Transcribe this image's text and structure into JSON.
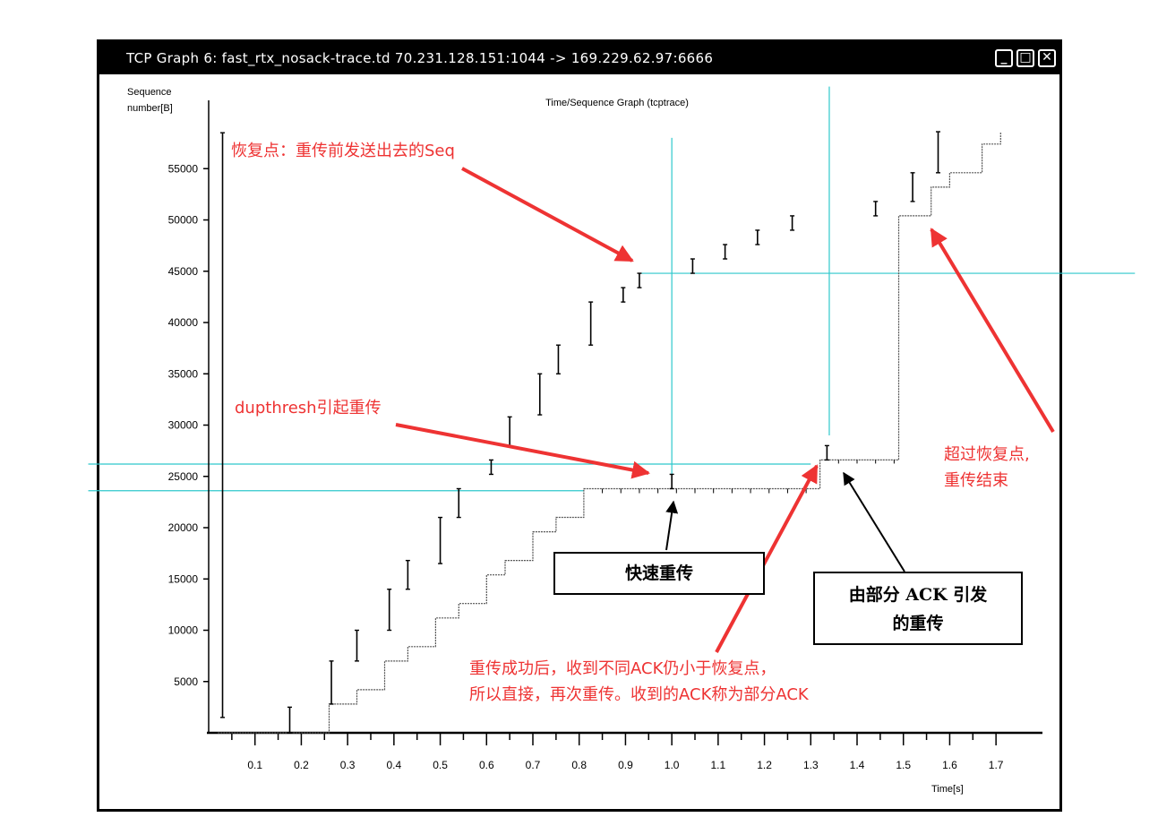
{
  "window": {
    "title": "TCP Graph 6: fast_rtx_nosack-trace.td 70.231.128.151:1044 -> 169.229.62.97:6666",
    "buttons": {
      "minimize": "_",
      "maximize": "□",
      "close": "✕"
    }
  },
  "chart_data": {
    "type": "scatter",
    "title": "Time/Sequence Graph (tcptrace)",
    "ylabel_line1": "Sequence",
    "ylabel_line2": "number[B]",
    "xlabel": "Time[s]",
    "xlim": [
      0,
      1.75
    ],
    "ylim": [
      0,
      60000
    ],
    "x_ticks": [
      0.1,
      0.2,
      0.3,
      0.4,
      0.5,
      0.6,
      0.7,
      0.8,
      0.9,
      1.0,
      1.1,
      1.2,
      1.3,
      1.4,
      1.5,
      1.6,
      1.7
    ],
    "x_tick_labels": [
      "0.1",
      "0.2",
      "0.3",
      "0.4",
      "0.5",
      "0.6",
      "0.7",
      "0.8",
      "0.9",
      "1.0",
      "1.1",
      "1.2",
      "1.3",
      "1.4",
      "1.5",
      "1.6",
      "1.7"
    ],
    "y_ticks": [
      5000,
      10000,
      15000,
      20000,
      25000,
      30000,
      35000,
      40000,
      45000,
      50000,
      55000
    ],
    "y_tick_labels": [
      "5000",
      "10000",
      "15000",
      "20000",
      "25000",
      "30000",
      "35000",
      "40000",
      "45000",
      "50000",
      "55000"
    ],
    "colors": {
      "data": "#000000",
      "guide": "#2ec8cc",
      "annotation": "#ee3333",
      "ack": "#555555"
    },
    "segments": [
      {
        "t": 0.03,
        "lo": 1500,
        "hi": 58500
      },
      {
        "t": 0.175,
        "lo": 0,
        "hi": 2500
      },
      {
        "t": 0.265,
        "lo": 2800,
        "hi": 7000
      },
      {
        "t": 0.32,
        "lo": 7000,
        "hi": 10000
      },
      {
        "t": 0.39,
        "lo": 10000,
        "hi": 14000
      },
      {
        "t": 0.43,
        "lo": 14000,
        "hi": 16800
      },
      {
        "t": 0.5,
        "lo": 16500,
        "hi": 21000
      },
      {
        "t": 0.54,
        "lo": 21000,
        "hi": 23800
      },
      {
        "t": 0.61,
        "lo": 25200,
        "hi": 26600
      },
      {
        "t": 0.65,
        "lo": 28000,
        "hi": 30800
      },
      {
        "t": 0.715,
        "lo": 31000,
        "hi": 35000
      },
      {
        "t": 0.755,
        "lo": 35000,
        "hi": 37800
      },
      {
        "t": 0.825,
        "lo": 37800,
        "hi": 42000
      },
      {
        "t": 0.895,
        "lo": 42000,
        "hi": 43400
      },
      {
        "t": 0.93,
        "lo": 43400,
        "hi": 44800
      },
      {
        "t": 1.0,
        "lo": 23800,
        "hi": 25200
      },
      {
        "t": 1.045,
        "lo": 44800,
        "hi": 46200
      },
      {
        "t": 1.115,
        "lo": 46200,
        "hi": 47600
      },
      {
        "t": 1.185,
        "lo": 47600,
        "hi": 49000
      },
      {
        "t": 1.26,
        "lo": 49000,
        "hi": 50400
      },
      {
        "t": 1.335,
        "lo": 26600,
        "hi": 28000
      },
      {
        "t": 1.44,
        "lo": 50400,
        "hi": 51800
      },
      {
        "t": 1.52,
        "lo": 51800,
        "hi": 54600
      },
      {
        "t": 1.575,
        "lo": 54600,
        "hi": 58600
      }
    ],
    "ack_line": [
      [
        0.02,
        0
      ],
      [
        0.26,
        0
      ],
      [
        0.26,
        2800
      ],
      [
        0.32,
        2800
      ],
      [
        0.32,
        4200
      ],
      [
        0.38,
        4200
      ],
      [
        0.38,
        7000
      ],
      [
        0.43,
        7000
      ],
      [
        0.43,
        8400
      ],
      [
        0.49,
        8400
      ],
      [
        0.49,
        11200
      ],
      [
        0.54,
        11200
      ],
      [
        0.54,
        12600
      ],
      [
        0.6,
        12600
      ],
      [
        0.6,
        15400
      ],
      [
        0.64,
        15400
      ],
      [
        0.64,
        16800
      ],
      [
        0.7,
        16800
      ],
      [
        0.7,
        19600
      ],
      [
        0.75,
        19600
      ],
      [
        0.75,
        21000
      ],
      [
        0.81,
        21000
      ],
      [
        0.81,
        23800
      ],
      [
        1.32,
        23800
      ],
      [
        1.32,
        26600
      ],
      [
        1.49,
        26600
      ],
      [
        1.49,
        50400
      ],
      [
        1.56,
        50400
      ],
      [
        1.56,
        53200
      ],
      [
        1.6,
        53200
      ],
      [
        1.6,
        54600
      ],
      [
        1.67,
        54600
      ],
      [
        1.67,
        57400
      ],
      [
        1.71,
        57400
      ],
      [
        1.71,
        58600
      ]
    ],
    "guides": [
      {
        "dir": "v",
        "x": 1.0,
        "from": 25200,
        "to": 58000
      },
      {
        "dir": "v",
        "x": 1.34,
        "from": 29000,
        "to": 63000
      },
      {
        "dir": "h",
        "y": 44800,
        "from": 0.93,
        "to": 2.0
      },
      {
        "dir": "h",
        "y": 26200,
        "from": -0.26,
        "to": 1.3
      },
      {
        "dir": "h",
        "y": 23600,
        "from": -0.26,
        "to": 0.81
      }
    ]
  },
  "annotations": {
    "recovery_point": "恢复点：重传前发送出去的Seq",
    "dupthresh": "dupthresh引起重传",
    "exceed_1": "超过恢复点,",
    "exceed_2": "重传结束",
    "partial_ack_1": "重传成功后，收到不同ACK仍小于恢复点，",
    "partial_ack_2": "所以直接，再次重传。收到的ACK称为部分ACK",
    "fast_retx_box": "快速重传",
    "partial_box_1": "由部分 ACK 引发",
    "partial_box_2": "的重传"
  }
}
